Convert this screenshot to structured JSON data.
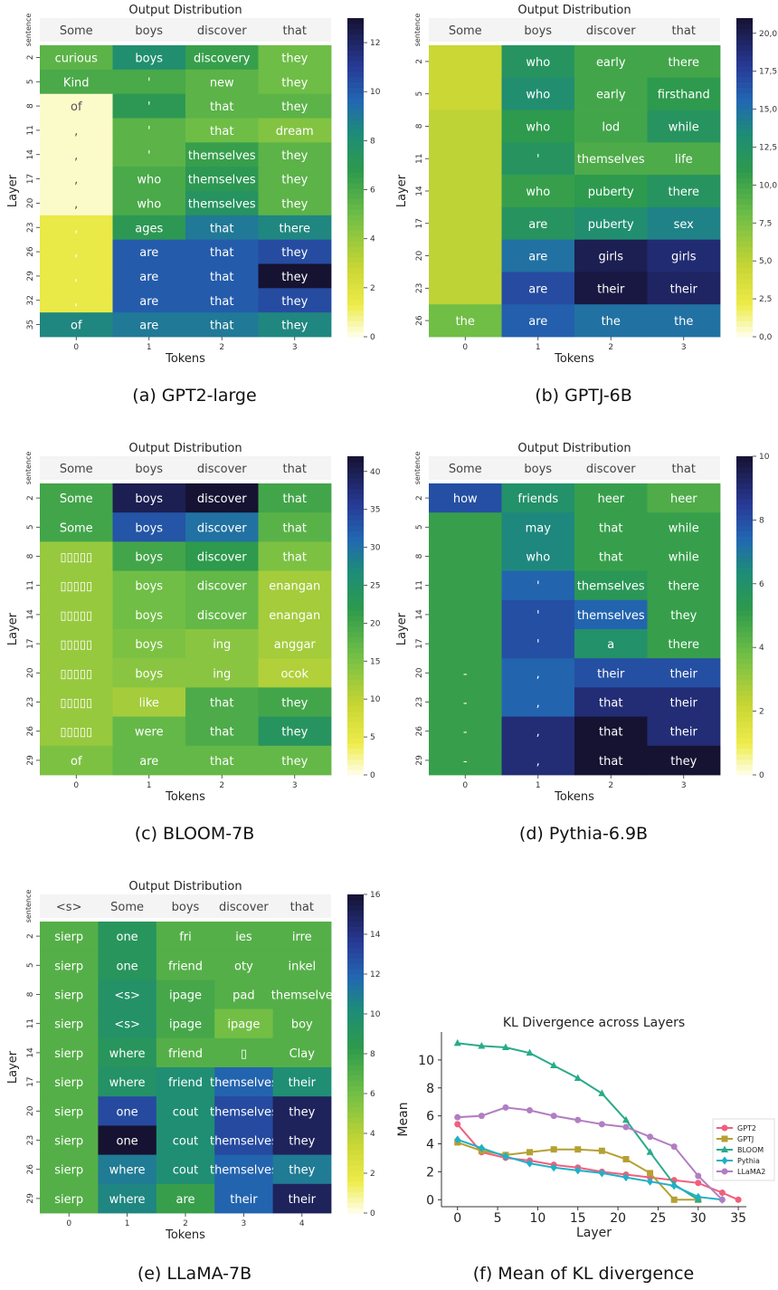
{
  "heatmaps": [
    {
      "id": "a",
      "title": "Output Distribution",
      "xlabel": "Tokens",
      "ylabel": "Layer",
      "sentence_label": "sentence",
      "header": [
        "Some",
        "boys",
        "discover",
        "that"
      ],
      "x_ticks": [
        "0",
        "1",
        "2",
        "3"
      ],
      "row_labels": [
        "2",
        "5",
        "8",
        "11",
        "14",
        "17",
        "20",
        "23",
        "26",
        "29",
        "32",
        "35"
      ],
      "cells": [
        [
          "curious",
          "boys",
          "discovery",
          "they"
        ],
        [
          "Kind",
          "'",
          "new",
          "they"
        ],
        [
          "of",
          "'",
          "that",
          "they"
        ],
        [
          ",",
          "'",
          "that",
          "dream"
        ],
        [
          ",",
          "'",
          "themselves",
          "they"
        ],
        [
          ",",
          "who",
          "themselves",
          "they"
        ],
        [
          ",",
          "who",
          "themselves",
          "they"
        ],
        [
          ",",
          "ages",
          "that",
          "there"
        ],
        [
          ",",
          "are",
          "that",
          "they"
        ],
        [
          ",",
          "are",
          "that",
          "they"
        ],
        [
          ",",
          "are",
          "that",
          "they"
        ],
        [
          "of",
          "are",
          "that",
          "they"
        ]
      ],
      "values": [
        [
          5.5,
          8,
          6.5,
          5
        ],
        [
          6,
          6,
          5.5,
          5
        ],
        [
          0.3,
          7,
          5.5,
          5.5
        ],
        [
          0.3,
          5.5,
          5,
          4.5
        ],
        [
          0.3,
          5.5,
          6.5,
          5.5
        ],
        [
          0.3,
          6,
          7,
          5.5
        ],
        [
          0.3,
          6,
          7.5,
          5.5
        ],
        [
          1.5,
          7,
          9,
          8.5
        ],
        [
          1.5,
          10,
          10,
          10.5
        ],
        [
          1.5,
          10,
          10,
          13
        ],
        [
          1.5,
          10,
          10,
          10.5
        ],
        [
          8.5,
          9,
          9,
          8.5
        ]
      ],
      "colorbar": {
        "min": 0,
        "max": 13,
        "ticks": [
          0,
          2,
          4,
          6,
          8,
          10,
          12
        ]
      },
      "caption": "(a) GPT2-large"
    },
    {
      "id": "b",
      "title": "Output Distribution",
      "xlabel": "Tokens",
      "ylabel": "Layer",
      "sentence_label": "sentence",
      "header": [
        "Some",
        "boys",
        "discover",
        "that"
      ],
      "x_ticks": [
        "0",
        "1",
        "2",
        "3"
      ],
      "row_labels": [
        "2",
        "5",
        "8",
        "11",
        "14",
        "17",
        "20",
        "23",
        "26"
      ],
      "cells": [
        [
          "",
          "who",
          "early",
          "there"
        ],
        [
          "",
          "who",
          "early",
          "firsthand"
        ],
        [
          "",
          "who",
          "lod",
          "while"
        ],
        [
          "",
          "'",
          "themselves",
          "life"
        ],
        [
          "",
          "who",
          "puberty",
          "there"
        ],
        [
          "",
          "are",
          "puberty",
          "sex"
        ],
        [
          "",
          "are",
          "girls",
          "girls"
        ],
        [
          "",
          "are",
          "their",
          "their"
        ],
        [
          "the",
          "are",
          "the",
          "the"
        ]
      ],
      "values": [
        [
          4.5,
          12,
          10,
          10
        ],
        [
          4.5,
          13,
          10,
          11
        ],
        [
          5,
          11,
          10,
          12
        ],
        [
          5,
          12,
          9.5,
          9.5
        ],
        [
          5,
          10.5,
          11,
          12
        ],
        [
          5,
          12,
          13,
          14
        ],
        [
          5,
          15,
          20,
          19
        ],
        [
          5,
          17,
          20.5,
          19.5
        ],
        [
          8,
          16,
          15,
          15
        ]
      ],
      "colorbar": {
        "min": 0,
        "max": 21,
        "ticks": [
          0,
          2.5,
          5,
          7.5,
          10,
          12.5,
          15,
          17.5,
          20
        ],
        "tick_labels": [
          "0,0",
          "2,5",
          "5,0",
          "7,5",
          "10,0",
          "12,5",
          "15,0",
          "17,5",
          "20,0"
        ]
      },
      "caption": "(b) GPTJ-6B"
    },
    {
      "id": "c",
      "title": "Output Distribution",
      "xlabel": "Tokens",
      "ylabel": "Layer",
      "sentence_label": "sentence",
      "header": [
        "Some",
        "boys",
        "discover",
        "that"
      ],
      "x_ticks": [
        "0",
        "1",
        "2",
        "3"
      ],
      "row_labels": [
        "2",
        "5",
        "8",
        "11",
        "14",
        "17",
        "20",
        "23",
        "26",
        "29"
      ],
      "cells": [
        [
          "Some",
          "boys",
          "discover",
          "that"
        ],
        [
          "Some",
          "boys",
          "discover",
          "that"
        ],
        [
          "▯▯▯▯▯",
          "boys",
          "discover",
          "that"
        ],
        [
          "▯▯▯▯▯",
          "boys",
          "discover",
          "enangan"
        ],
        [
          "▯▯▯▯▯",
          "boys",
          "discover",
          "enangan"
        ],
        [
          "▯▯▯▯▯",
          "boys",
          "ing",
          "anggar"
        ],
        [
          "▯▯▯▯▯",
          "boys",
          "ing",
          "ocok"
        ],
        [
          "▯▯▯▯▯",
          "like",
          "that",
          "they"
        ],
        [
          "▯▯▯▯▯",
          "were",
          "that",
          "they"
        ],
        [
          "of",
          "are",
          "that",
          "they"
        ]
      ],
      "values": [
        [
          20,
          40,
          42,
          20
        ],
        [
          20,
          33,
          30,
          18
        ],
        [
          13,
          20,
          22,
          15
        ],
        [
          13,
          16,
          17,
          12
        ],
        [
          13,
          16,
          17,
          12
        ],
        [
          13,
          15,
          14,
          12
        ],
        [
          13,
          14,
          14,
          11
        ],
        [
          13,
          12,
          19,
          20
        ],
        [
          13,
          17,
          19,
          24
        ],
        [
          15,
          17,
          17,
          17
        ]
      ],
      "colorbar": {
        "min": 0,
        "max": 42,
        "ticks": [
          0,
          5,
          10,
          15,
          20,
          25,
          30,
          35,
          40
        ]
      },
      "caption": "(c) BLOOM-7B"
    },
    {
      "id": "d",
      "title": "Output Distribution",
      "xlabel": "Tokens",
      "ylabel": "Layer",
      "sentence_label": "sentence",
      "header": [
        "Some",
        "boys",
        "discover",
        "that"
      ],
      "x_ticks": [
        "0",
        "1",
        "2",
        "3"
      ],
      "row_labels": [
        "2",
        "5",
        "8",
        "11",
        "14",
        "17",
        "20",
        "23",
        "26",
        "29"
      ],
      "cells": [
        [
          "how",
          "friends",
          "heer",
          "heer"
        ],
        [
          "",
          "may",
          "that",
          "while"
        ],
        [
          "",
          "who",
          "that",
          "while"
        ],
        [
          "",
          "'",
          "themselves",
          "there"
        ],
        [
          "",
          "'",
          "themselves",
          "they"
        ],
        [
          "",
          "'",
          "a",
          "there"
        ],
        [
          "-",
          ",",
          "their",
          "their"
        ],
        [
          "-",
          ",",
          "that",
          "their"
        ],
        [
          "-",
          ",",
          "that",
          "their"
        ],
        [
          "-",
          ",",
          "that",
          "they"
        ]
      ],
      "values": [
        [
          8,
          6,
          5,
          4.5
        ],
        [
          5,
          6.5,
          5,
          5
        ],
        [
          5,
          6.5,
          5,
          5
        ],
        [
          5,
          7.5,
          5.5,
          5
        ],
        [
          5,
          8,
          7.5,
          5
        ],
        [
          5,
          8,
          6,
          5
        ],
        [
          5,
          7.5,
          8,
          8
        ],
        [
          5,
          7.5,
          9,
          9
        ],
        [
          5,
          9,
          10,
          9
        ],
        [
          5,
          9,
          10,
          10
        ]
      ],
      "colorbar": {
        "min": 0,
        "max": 10,
        "ticks": [
          0,
          2,
          4,
          6,
          8,
          10
        ]
      },
      "caption": "(d) Pythia-6.9B"
    },
    {
      "id": "e",
      "title": "Output Distribution",
      "xlabel": "Tokens",
      "ylabel": "Layer",
      "sentence_label": "sentence",
      "header": [
        "<s>",
        "Some",
        "boys",
        "discover",
        "that"
      ],
      "x_ticks": [
        "0",
        "1",
        "2",
        "3",
        "4"
      ],
      "row_labels": [
        "2",
        "5",
        "8",
        "11",
        "14",
        "17",
        "20",
        "23",
        "26",
        "29"
      ],
      "cells": [
        [
          "sierp",
          "one",
          "fri",
          "ies",
          "irre"
        ],
        [
          "sierp",
          "one",
          "friend",
          "oty",
          "inkel"
        ],
        [
          "sierp",
          "<s>",
          "ipage",
          "pad",
          "themselve"
        ],
        [
          "sierp",
          "<s>",
          "ipage",
          "ipage",
          "boy"
        ],
        [
          "sierp",
          "where",
          "friend",
          "▯",
          "Clay"
        ],
        [
          "sierp",
          "where",
          "friend",
          "themselves",
          "their"
        ],
        [
          "sierp",
          "one",
          "cout",
          "themselves",
          "they"
        ],
        [
          "sierp",
          "one",
          "cout",
          "themselves",
          "they"
        ],
        [
          "sierp",
          "where",
          "cout",
          "themselves",
          "they"
        ],
        [
          "sierp",
          "where",
          "are",
          "their",
          "their"
        ]
      ],
      "values": [
        [
          7,
          9,
          7,
          7,
          7
        ],
        [
          7,
          9,
          7,
          7,
          7
        ],
        [
          7,
          9.5,
          7.5,
          7,
          7
        ],
        [
          7,
          9.5,
          7.5,
          6,
          7
        ],
        [
          7,
          9,
          7,
          7,
          7
        ],
        [
          7,
          9.5,
          10,
          12,
          10
        ],
        [
          7,
          13,
          10,
          13,
          15
        ],
        [
          7,
          16,
          10,
          13,
          15
        ],
        [
          7,
          11,
          10,
          12,
          11
        ],
        [
          7,
          10.5,
          8,
          12,
          15
        ]
      ],
      "colorbar": {
        "min": 0,
        "max": 16,
        "ticks": [
          0,
          2,
          4,
          6,
          8,
          10,
          12,
          14,
          16
        ]
      },
      "caption": "(e) LLaMA-7B"
    }
  ],
  "chart_data": [
    {
      "type": "line",
      "title": "KL Divergence across Layers",
      "xlabel": "Layer",
      "ylabel": "Mean",
      "xlim": [
        -2,
        36
      ],
      "ylim": [
        -0.5,
        12
      ],
      "x_ticks": [
        0,
        5,
        10,
        15,
        20,
        25,
        30,
        35
      ],
      "y_ticks": [
        0,
        2,
        4,
        6,
        8,
        10
      ],
      "legend_position": "right",
      "series": [
        {
          "name": "GPT2",
          "color": "#f0607c",
          "marker": "circle",
          "x": [
            0,
            3,
            6,
            9,
            12,
            15,
            18,
            21,
            24,
            27,
            30,
            33,
            35
          ],
          "y": [
            5.4,
            3.4,
            3.0,
            2.8,
            2.5,
            2.3,
            2.0,
            1.8,
            1.6,
            1.4,
            1.2,
            0.5,
            0.0
          ]
        },
        {
          "name": "GPTJ",
          "color": "#b5a032",
          "marker": "square",
          "x": [
            0,
            3,
            6,
            9,
            12,
            15,
            18,
            21,
            24,
            27,
            30
          ],
          "y": [
            4.1,
            3.5,
            3.2,
            3.4,
            3.6,
            3.6,
            3.5,
            2.9,
            1.9,
            0.0,
            0.0
          ]
        },
        {
          "name": "BLOOM",
          "color": "#29ab8a",
          "marker": "triangle",
          "x": [
            0,
            3,
            6,
            9,
            12,
            15,
            18,
            21,
            24,
            27,
            30
          ],
          "y": [
            11.2,
            11.0,
            10.9,
            10.5,
            9.6,
            8.7,
            7.6,
            5.7,
            3.4,
            1.1,
            0.0
          ]
        },
        {
          "name": "Pythia",
          "color": "#1fb0c8",
          "marker": "diamond",
          "x": [
            0,
            3,
            6,
            9,
            12,
            15,
            18,
            21,
            24,
            27,
            30,
            33
          ],
          "y": [
            4.3,
            3.7,
            3.1,
            2.6,
            2.3,
            2.1,
            1.9,
            1.6,
            1.3,
            1.0,
            0.2,
            0.0
          ]
        },
        {
          "name": "LLaMA2",
          "color": "#b27ec2",
          "marker": "circle",
          "x": [
            0,
            3,
            6,
            9,
            12,
            15,
            18,
            21,
            24,
            27,
            30,
            33
          ],
          "y": [
            5.9,
            6.0,
            6.6,
            6.4,
            6.0,
            5.7,
            5.4,
            5.2,
            4.5,
            3.8,
            1.7,
            0.0
          ]
        }
      ],
      "caption": "(f) Mean of KL divergence"
    }
  ]
}
